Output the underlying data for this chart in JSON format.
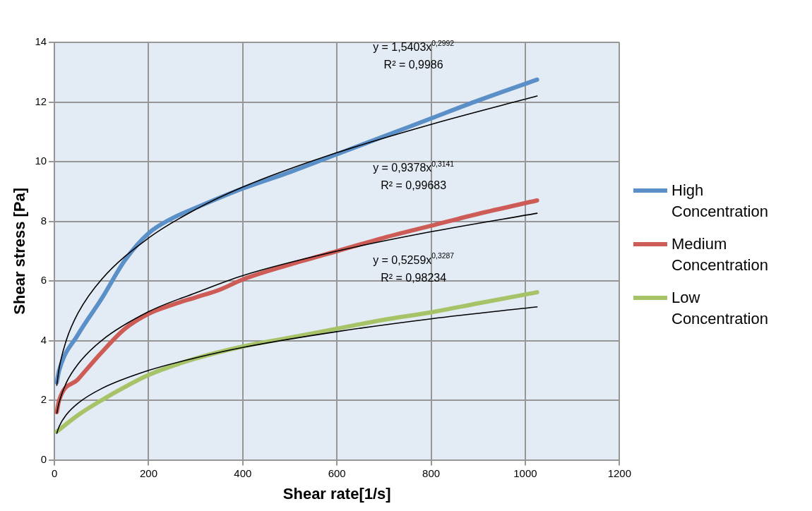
{
  "chart_data": {
    "type": "line",
    "xlabel": "Shear rate[1/s]",
    "ylabel": "Shear stress [Pa]",
    "xlim": [
      0,
      1200
    ],
    "xticks": [
      0,
      200,
      400,
      600,
      800,
      1000,
      1200
    ],
    "ylim": [
      0,
      14
    ],
    "yticks": [
      0,
      2,
      4,
      6,
      8,
      10,
      12,
      14
    ],
    "grid": true,
    "legend": "right",
    "marker": "none",
    "line_style": "solid",
    "series": [
      {
        "name": "High Concentration",
        "color": "#5b8fc7",
        "x": [
          5,
          10,
          50,
          100,
          150,
          200,
          250,
          300,
          400,
          500,
          600,
          700,
          800,
          900,
          1025
        ],
        "values": [
          2.6,
          3.0,
          4.2,
          5.4,
          6.7,
          7.6,
          8.1,
          8.45,
          9.1,
          9.65,
          10.25,
          10.85,
          11.45,
          12.05,
          12.75
        ]
      },
      {
        "name": "Medium Concentration",
        "color": "#cd5c56",
        "x": [
          5,
          10,
          50,
          100,
          150,
          200,
          250,
          300,
          350,
          400,
          500,
          600,
          700,
          800,
          900,
          1025
        ],
        "values": [
          1.6,
          2.0,
          2.7,
          3.6,
          4.4,
          4.9,
          5.2,
          5.45,
          5.7,
          6.05,
          6.55,
          7.0,
          7.45,
          7.85,
          8.25,
          8.7
        ]
      },
      {
        "name": "Low Concentration",
        "color": "#a6c467",
        "x": [
          5,
          50,
          100,
          150,
          200,
          300,
          400,
          500,
          600,
          700,
          800,
          900,
          1025
        ],
        "values": [
          0.95,
          1.5,
          2.0,
          2.45,
          2.85,
          3.4,
          3.8,
          4.1,
          4.4,
          4.7,
          4.95,
          5.25,
          5.62
        ]
      },
      {
        "color": "#000000",
        "x": [
          5,
          10,
          25,
          50,
          100,
          200,
          300,
          400,
          600,
          800,
          1025
        ],
        "values": [
          2.5,
          3.07,
          4.0,
          4.92,
          6.05,
          7.44,
          8.4,
          9.15,
          10.3,
          11.25,
          12.2
        ]
      },
      {
        "color": "#000000",
        "x": [
          5,
          10,
          25,
          50,
          100,
          200,
          300,
          400,
          600,
          800,
          1025
        ],
        "values": [
          1.57,
          1.93,
          2.58,
          3.21,
          4.0,
          4.97,
          5.6,
          6.18,
          7.0,
          7.65,
          8.27
        ]
      },
      {
        "color": "#000000",
        "x": [
          5,
          10,
          25,
          50,
          100,
          200,
          300,
          400,
          600,
          800,
          1025
        ],
        "values": [
          0.89,
          1.12,
          1.51,
          1.9,
          2.39,
          3.0,
          3.42,
          3.77,
          4.3,
          4.73,
          5.13
        ]
      }
    ],
    "annotations": [
      "y = 1,5403x$^{0,2992}$",
      "R² = 0,9986",
      "y = 0,9378x$^{0,3141}$",
      "R² = 0,99683",
      "y = 0,5259x$^{0,3287}$",
      "R² = 0,98234"
    ]
  }
}
